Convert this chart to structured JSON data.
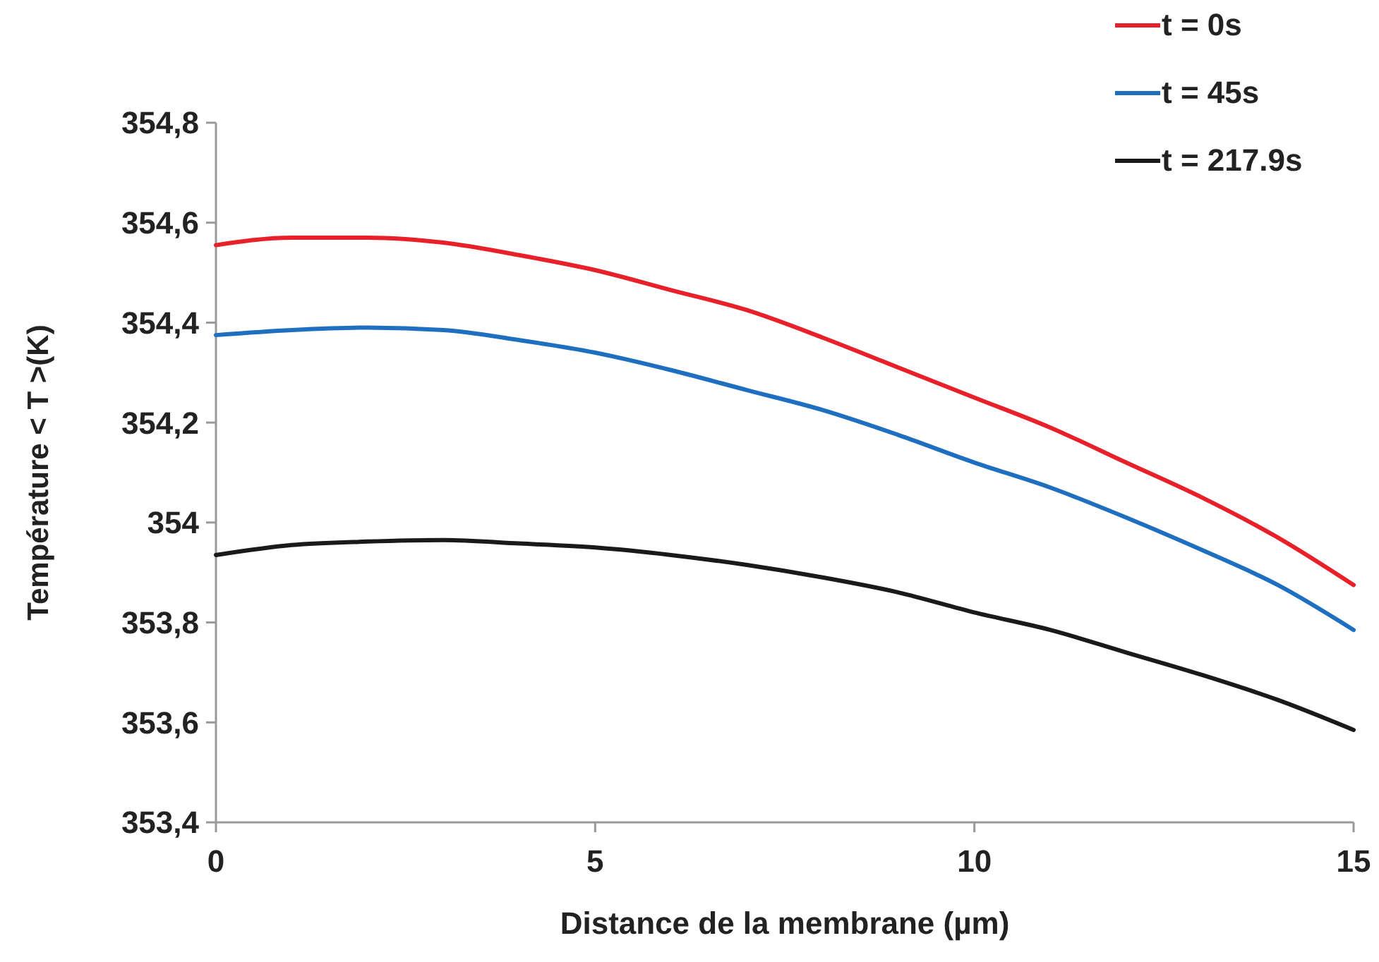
{
  "chart_data": {
    "type": "line",
    "xlabel": "Distance de la membrane (µm)",
    "ylabel": "Température  < T >(K)",
    "x": [
      0,
      1,
      2,
      3,
      4,
      5,
      6,
      7,
      8,
      9,
      10,
      11,
      12,
      13,
      14,
      15
    ],
    "xlim": [
      0,
      15
    ],
    "xticks": [
      0,
      5,
      10,
      15
    ],
    "ylim": [
      353.4,
      354.8
    ],
    "yticks": [
      {
        "value": 353.4,
        "label": "353,4"
      },
      {
        "value": 353.6,
        "label": "353,6"
      },
      {
        "value": 353.8,
        "label": "353,8"
      },
      354,
      {
        "value": 354.2,
        "label": "354,2"
      },
      {
        "value": 354.4,
        "label": "354,4"
      },
      {
        "value": 354.6,
        "label": "354,6"
      },
      {
        "value": 354.8,
        "label": "354,8"
      }
    ],
    "grid": false,
    "legend": "top",
    "marker": "none",
    "line_style": "solid",
    "series": [
      {
        "name": "t = 0s",
        "color": "#e8202a",
        "values": [
          354.555,
          354.57,
          354.57,
          354.56,
          354.535,
          354.505,
          354.465,
          354.425,
          354.37,
          354.31,
          354.25,
          354.19,
          354.12,
          354.05,
          353.97,
          353.875
        ]
      },
      {
        "name": "t = 45s",
        "color": "#1f6fc0",
        "values": [
          354.375,
          354.385,
          354.39,
          354.385,
          354.365,
          354.34,
          354.305,
          354.265,
          354.225,
          354.175,
          354.12,
          354.07,
          354.01,
          353.945,
          353.875,
          353.785
        ]
      },
      {
        "name": "t = 217.9s",
        "color": "#1a1a1a",
        "values": [
          353.935,
          353.955,
          353.962,
          353.965,
          353.958,
          353.95,
          353.935,
          353.915,
          353.89,
          353.86,
          353.82,
          353.785,
          353.74,
          353.695,
          353.645,
          353.585
        ]
      }
    ]
  }
}
